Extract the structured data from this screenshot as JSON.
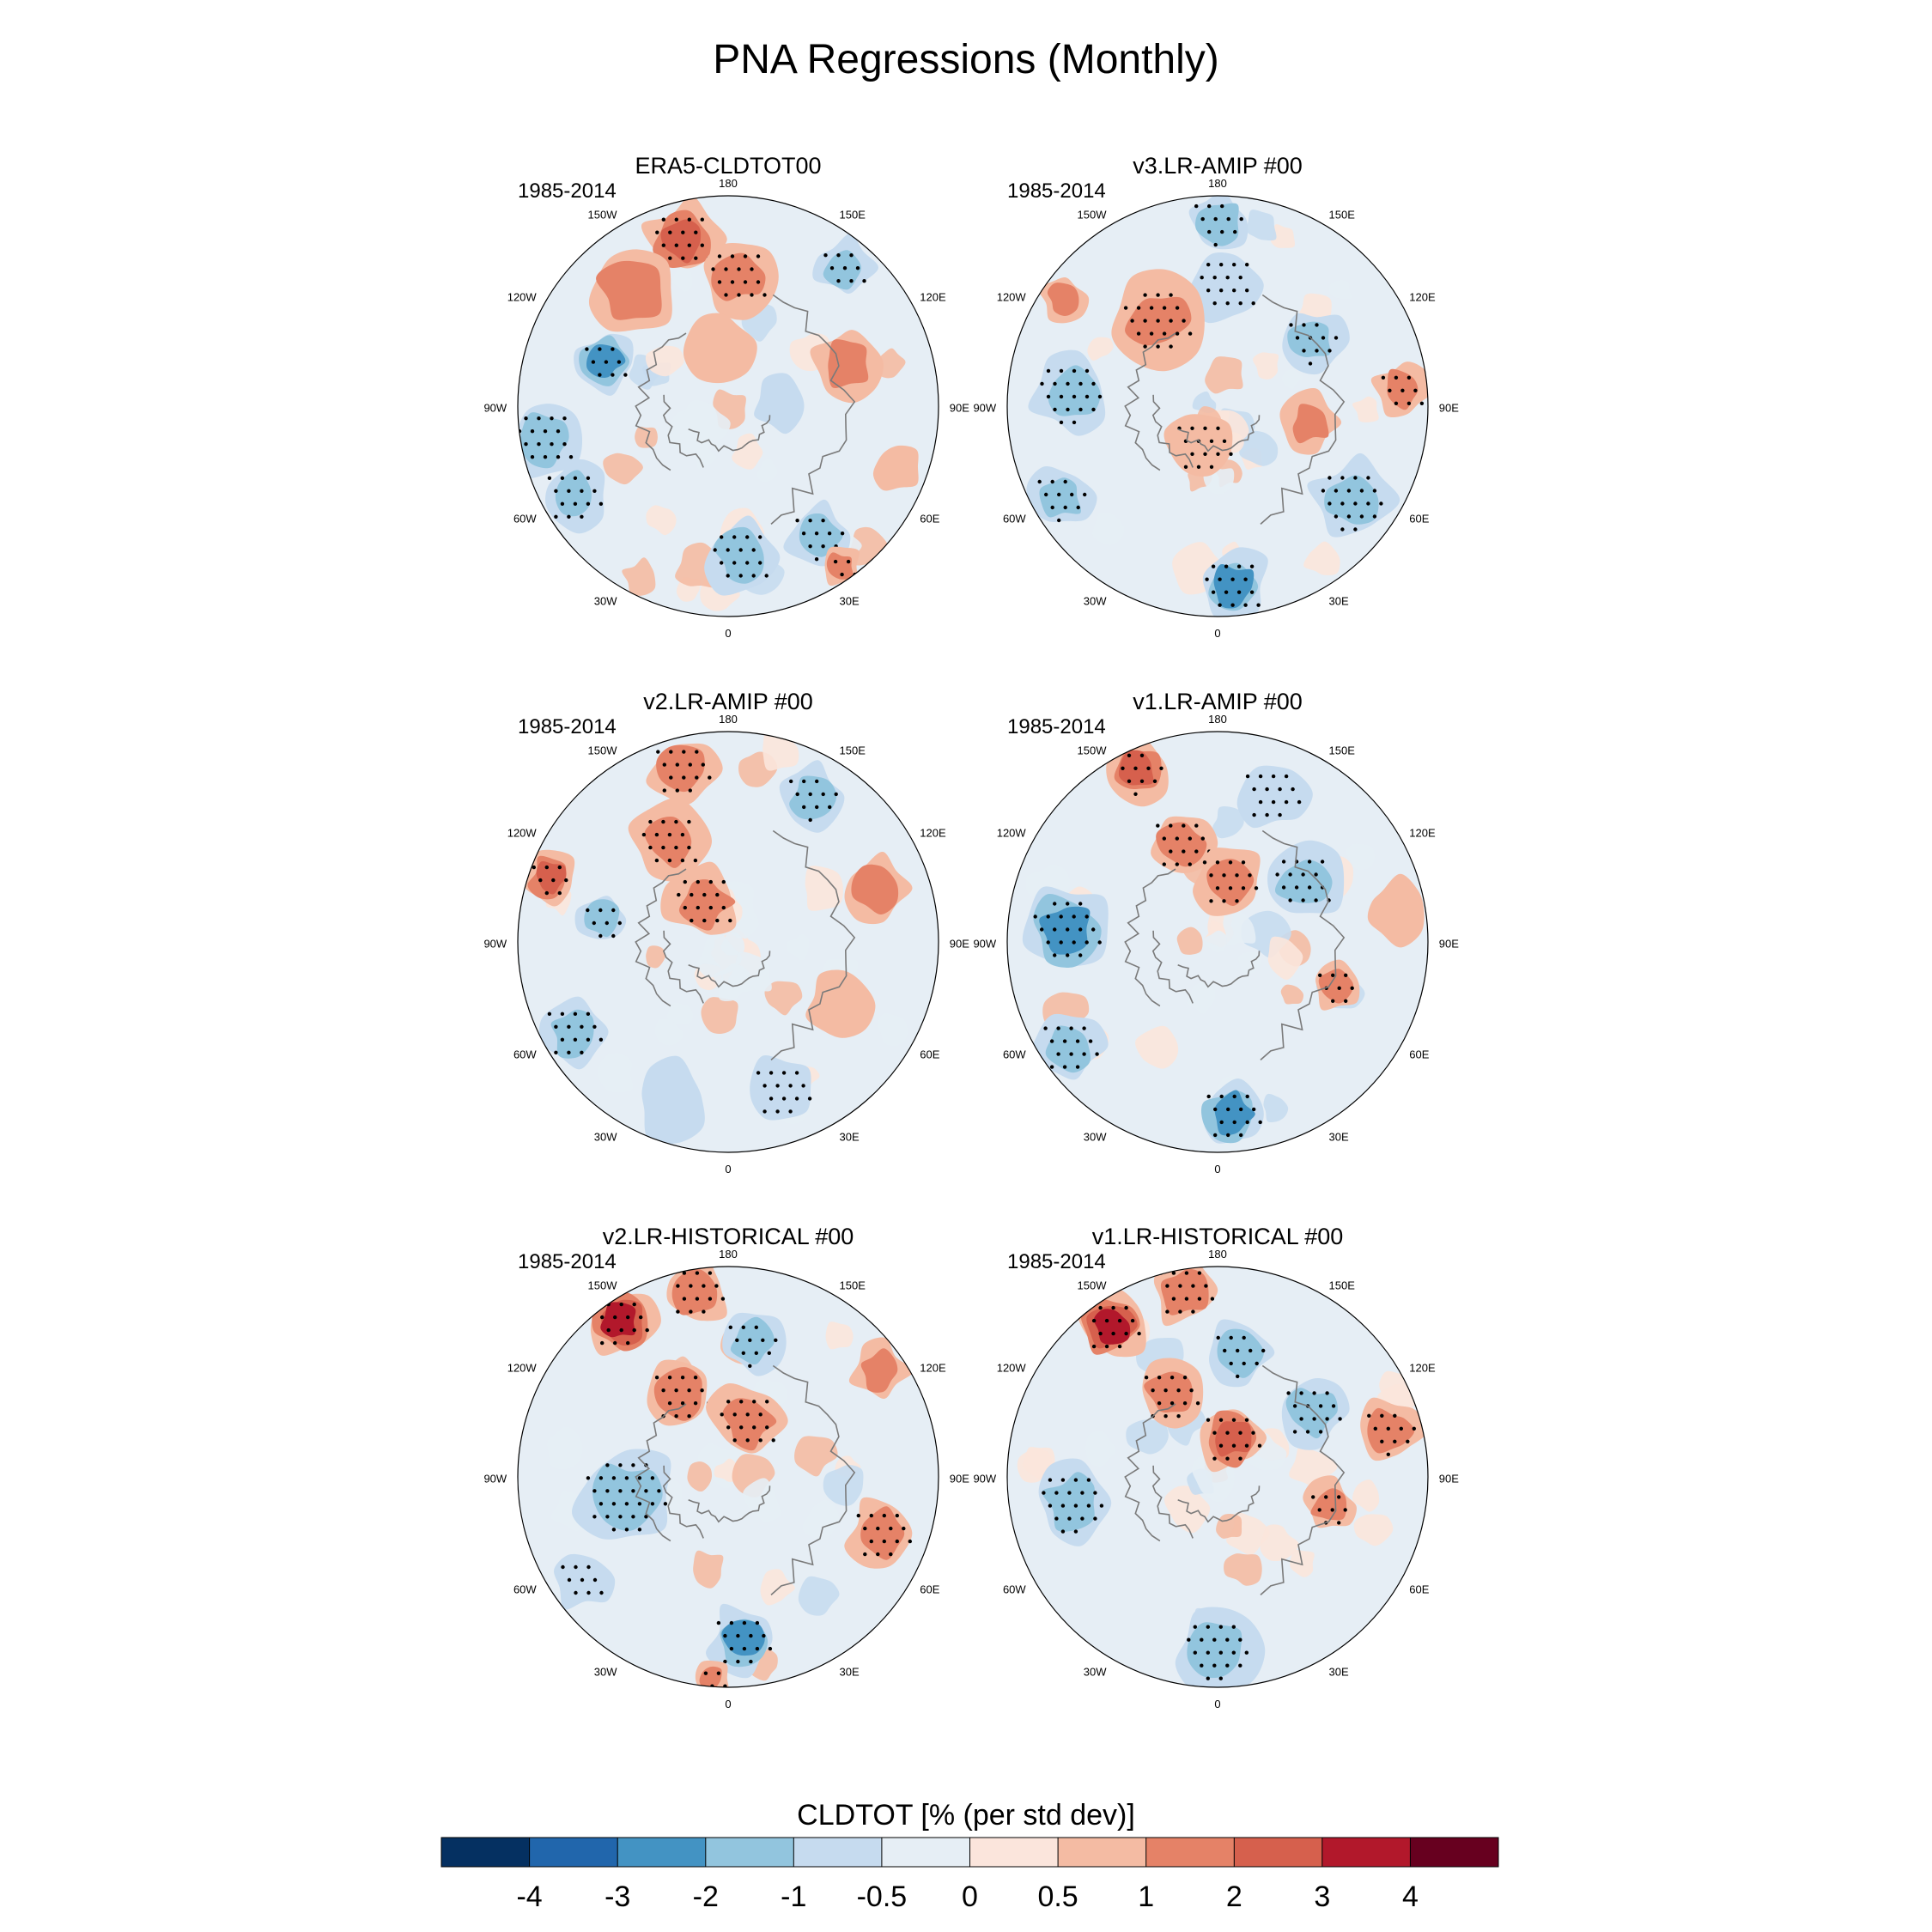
{
  "chart_data": {
    "type": "heatmap",
    "title": "PNA Regressions (Monthly)",
    "projection": "north-polar-stereographic",
    "period": "1985-2014",
    "lon_labels": [
      "180",
      "150E",
      "120E",
      "90E",
      "60E",
      "30E",
      "0",
      "30W",
      "60W",
      "90W",
      "120W",
      "150W"
    ],
    "panels": [
      {
        "id": "era5",
        "title": "ERA5-CLDTOT00",
        "period": "1985-2014",
        "features": [
          {
            "type": "blob",
            "sign": 1,
            "level": 3,
            "lon": -165,
            "r": 0.82,
            "size": 0.13,
            "stipple": true
          },
          {
            "type": "blob",
            "sign": 1,
            "level": 2,
            "lon": -140,
            "r": 0.72,
            "size": 0.16
          },
          {
            "type": "blob",
            "sign": 1,
            "level": 2,
            "lon": 175,
            "r": 0.62,
            "size": 0.13,
            "stipple": true
          },
          {
            "type": "blob",
            "sign": -1,
            "level": 2,
            "lon": 140,
            "r": 0.86,
            "size": 0.1,
            "stipple": true
          },
          {
            "type": "blob",
            "sign": 1,
            "level": 2,
            "lon": 110,
            "r": 0.6,
            "size": 0.12
          },
          {
            "type": "blob",
            "sign": -1,
            "level": 3,
            "lon": -110,
            "r": 0.62,
            "size": 0.1,
            "stipple": true
          },
          {
            "type": "blob",
            "sign": -1,
            "level": 2,
            "lon": -80,
            "r": 0.88,
            "size": 0.13,
            "stipple": true
          },
          {
            "type": "blob",
            "sign": -1,
            "level": 2,
            "lon": -60,
            "r": 0.85,
            "size": 0.12,
            "stipple": true
          },
          {
            "type": "blob",
            "sign": -1,
            "level": 2,
            "lon": 5,
            "r": 0.72,
            "size": 0.13,
            "stipple": true
          },
          {
            "type": "blob",
            "sign": -1,
            "level": 2,
            "lon": 35,
            "r": 0.75,
            "size": 0.11,
            "stipple": true
          },
          {
            "type": "blob",
            "sign": 1,
            "level": 2,
            "lon": 35,
            "r": 0.93,
            "size": 0.07,
            "stipple": true
          },
          {
            "type": "blob",
            "sign": 1,
            "level": 1,
            "lon": 70,
            "r": 0.85,
            "size": 0.08
          },
          {
            "type": "blob",
            "sign": 1,
            "level": 1,
            "lon": -170,
            "r": 0.3,
            "size": 0.12
          },
          {
            "type": "blob",
            "sign": -1,
            "level": 1,
            "lon": 90,
            "r": 0.25,
            "size": 0.1
          }
        ]
      },
      {
        "id": "v3amip",
        "title": "v3.LR-AMIP  #00",
        "period": "1985-2014",
        "features": [
          {
            "type": "blob",
            "sign": -1,
            "level": 2,
            "lon": 180,
            "r": 0.88,
            "size": 0.11,
            "stipple": true
          },
          {
            "type": "blob",
            "sign": -1,
            "level": 1,
            "lon": 175,
            "r": 0.58,
            "size": 0.13,
            "stipple": true
          },
          {
            "type": "blob",
            "sign": 1,
            "level": 2,
            "lon": -145,
            "r": 0.5,
            "size": 0.15,
            "stipple": true
          },
          {
            "type": "blob",
            "sign": 1,
            "level": 2,
            "lon": -125,
            "r": 0.9,
            "size": 0.08
          },
          {
            "type": "blob",
            "sign": -1,
            "level": 2,
            "lon": -95,
            "r": 0.7,
            "size": 0.14,
            "stipple": true
          },
          {
            "type": "blob",
            "sign": -1,
            "level": 2,
            "lon": -60,
            "r": 0.86,
            "size": 0.11,
            "stipple": true
          },
          {
            "type": "blob",
            "sign": -1,
            "level": 3,
            "lon": 5,
            "r": 0.86,
            "size": 0.13,
            "stipple": true
          },
          {
            "type": "blob",
            "sign": -1,
            "level": 2,
            "lon": 55,
            "r": 0.78,
            "size": 0.14,
            "stipple": true
          },
          {
            "type": "blob",
            "sign": 1,
            "level": 2,
            "lon": 95,
            "r": 0.88,
            "size": 0.1,
            "stipple": true
          },
          {
            "type": "blob",
            "sign": -1,
            "level": 2,
            "lon": 125,
            "r": 0.55,
            "size": 0.11,
            "stipple": true
          },
          {
            "type": "blob",
            "sign": 1,
            "level": 2,
            "lon": 80,
            "r": 0.45,
            "size": 0.1
          },
          {
            "type": "blob",
            "sign": 1,
            "level": 1,
            "lon": -20,
            "r": 0.2,
            "size": 0.12,
            "stipple": true
          }
        ]
      },
      {
        "id": "v2amip",
        "title": "v2.LR-AMIP  #00",
        "period": "1985-2014",
        "features": [
          {
            "type": "blob",
            "sign": 1,
            "level": 2,
            "lon": -165,
            "r": 0.85,
            "size": 0.12,
            "stipple": true
          },
          {
            "type": "blob",
            "sign": 1,
            "level": 2,
            "lon": -150,
            "r": 0.55,
            "size": 0.13,
            "stipple": true
          },
          {
            "type": "blob",
            "sign": 1,
            "level": 3,
            "lon": -110,
            "r": 0.9,
            "size": 0.09,
            "stipple": true
          },
          {
            "type": "blob",
            "sign": -1,
            "level": 2,
            "lon": -100,
            "r": 0.6,
            "size": 0.09,
            "stipple": true
          },
          {
            "type": "blob",
            "sign": 1,
            "level": 2,
            "lon": -150,
            "r": 0.22,
            "size": 0.13,
            "stipple": true
          },
          {
            "type": "blob",
            "sign": -1,
            "level": 2,
            "lon": 150,
            "r": 0.8,
            "size": 0.11,
            "stipple": true
          },
          {
            "type": "blob",
            "sign": 1,
            "level": 2,
            "lon": 110,
            "r": 0.75,
            "size": 0.12
          },
          {
            "type": "blob",
            "sign": -1,
            "level": 2,
            "lon": -60,
            "r": 0.85,
            "size": 0.12,
            "stipple": true
          },
          {
            "type": "blob",
            "sign": -1,
            "level": 1,
            "lon": -20,
            "r": 0.8,
            "size": 0.13
          },
          {
            "type": "blob",
            "sign": -1,
            "level": 1,
            "lon": 20,
            "r": 0.75,
            "size": 0.12,
            "stipple": true
          },
          {
            "type": "blob",
            "sign": 1,
            "level": 1,
            "lon": 60,
            "r": 0.6,
            "size": 0.12
          }
        ]
      },
      {
        "id": "v1amip",
        "title": "v1.LR-AMIP  #00",
        "period": "1985-2014",
        "features": [
          {
            "type": "blob",
            "sign": 1,
            "level": 3,
            "lon": -155,
            "r": 0.9,
            "size": 0.11,
            "stipple": true
          },
          {
            "type": "blob",
            "sign": 1,
            "level": 2,
            "lon": -160,
            "r": 0.5,
            "size": 0.12,
            "stipple": true
          },
          {
            "type": "blob",
            "sign": 1,
            "level": 2,
            "lon": 170,
            "r": 0.3,
            "size": 0.12,
            "stipple": true
          },
          {
            "type": "blob",
            "sign": -1,
            "level": 3,
            "lon": -95,
            "r": 0.72,
            "size": 0.15,
            "stipple": true
          },
          {
            "type": "blob",
            "sign": -1,
            "level": 2,
            "lon": -55,
            "r": 0.86,
            "size": 0.12,
            "stipple": true
          },
          {
            "type": "blob",
            "sign": -1,
            "level": 3,
            "lon": 5,
            "r": 0.82,
            "size": 0.12,
            "stipple": true
          },
          {
            "type": "blob",
            "sign": -1,
            "level": 2,
            "lon": 125,
            "r": 0.5,
            "size": 0.13,
            "stipple": true
          },
          {
            "type": "blob",
            "sign": 1,
            "level": 2,
            "lon": 70,
            "r": 0.6,
            "size": 0.09,
            "stipple": true
          },
          {
            "type": "blob",
            "sign": 1,
            "level": 1,
            "lon": 100,
            "r": 0.85,
            "size": 0.11
          },
          {
            "type": "blob",
            "sign": -1,
            "level": 1,
            "lon": 160,
            "r": 0.75,
            "size": 0.12,
            "stipple": true
          }
        ]
      },
      {
        "id": "v2hist",
        "title": "v2.LR-HISTORICAL  #00",
        "period": "1985-2014",
        "features": [
          {
            "type": "blob",
            "sign": 1,
            "level": 4,
            "lon": -145,
            "r": 0.9,
            "size": 0.12,
            "stipple": true
          },
          {
            "type": "blob",
            "sign": 1,
            "level": 2,
            "lon": -170,
            "r": 0.9,
            "size": 0.12,
            "stipple": true
          },
          {
            "type": "blob",
            "sign": -1,
            "level": 2,
            "lon": 170,
            "r": 0.65,
            "size": 0.11,
            "stipple": true
          },
          {
            "type": "blob",
            "sign": 1,
            "level": 2,
            "lon": -150,
            "r": 0.45,
            "size": 0.12,
            "stipple": true
          },
          {
            "type": "blob",
            "sign": 1,
            "level": 2,
            "lon": 160,
            "r": 0.28,
            "size": 0.13,
            "stipple": true
          },
          {
            "type": "blob",
            "sign": 1,
            "level": 2,
            "lon": 125,
            "r": 0.88,
            "size": 0.1
          },
          {
            "type": "blob",
            "sign": -1,
            "level": 2,
            "lon": -80,
            "r": 0.5,
            "size": 0.17,
            "stipple": true
          },
          {
            "type": "blob",
            "sign": -1,
            "level": 3,
            "lon": 5,
            "r": 0.78,
            "size": 0.12,
            "stipple": true
          },
          {
            "type": "blob",
            "sign": 1,
            "level": 2,
            "lon": -5,
            "r": 0.96,
            "size": 0.07,
            "stipple": true
          },
          {
            "type": "blob",
            "sign": 1,
            "level": 2,
            "lon": 70,
            "r": 0.78,
            "size": 0.12,
            "stipple": true
          },
          {
            "type": "blob",
            "sign": -1,
            "level": 1,
            "lon": -55,
            "r": 0.85,
            "size": 0.1,
            "stipple": true
          }
        ]
      },
      {
        "id": "v1hist",
        "title": "v1.LR-HISTORICAL  #00",
        "period": "1985-2014",
        "features": [
          {
            "type": "blob",
            "sign": 1,
            "level": 4,
            "lon": -145,
            "r": 0.88,
            "size": 0.12,
            "stipple": true
          },
          {
            "type": "blob",
            "sign": 1,
            "level": 2,
            "lon": -170,
            "r": 0.9,
            "size": 0.12,
            "stipple": true
          },
          {
            "type": "blob",
            "sign": -1,
            "level": 2,
            "lon": 170,
            "r": 0.6,
            "size": 0.11,
            "stipple": true
          },
          {
            "type": "blob",
            "sign": 1,
            "level": 2,
            "lon": -150,
            "r": 0.45,
            "size": 0.12,
            "stipple": true
          },
          {
            "type": "blob",
            "sign": 1,
            "level": 3,
            "lon": 160,
            "r": 0.2,
            "size": 0.12,
            "stipple": true
          },
          {
            "type": "blob",
            "sign": -1,
            "level": 2,
            "lon": 125,
            "r": 0.55,
            "size": 0.12,
            "stipple": true
          },
          {
            "type": "blob",
            "sign": 1,
            "level": 2,
            "lon": 105,
            "r": 0.85,
            "size": 0.11,
            "stipple": true
          },
          {
            "type": "blob",
            "sign": -1,
            "level": 2,
            "lon": -80,
            "r": 0.7,
            "size": 0.14,
            "stipple": true
          },
          {
            "type": "blob",
            "sign": -1,
            "level": 2,
            "lon": 0,
            "r": 0.82,
            "size": 0.14,
            "stipple": true
          },
          {
            "type": "blob",
            "sign": 1,
            "level": 2,
            "lon": 75,
            "r": 0.55,
            "size": 0.09,
            "stipple": true
          }
        ]
      }
    ],
    "colorbar": {
      "label": "CLDTOT [% (per std dev)]",
      "levels": [
        -4,
        -3,
        -2,
        -1,
        -0.5,
        0,
        0.5,
        1,
        2,
        3,
        4
      ],
      "tick_labels": [
        "-4",
        "-3",
        "-2",
        "-1",
        "-0.5",
        "0",
        "0.5",
        "1",
        "2",
        "3",
        "4"
      ],
      "colors": [
        "#053061",
        "#2166ac",
        "#4393c3",
        "#92c5de",
        "#c6dbef",
        "#e6eef5",
        "#fbe5dc",
        "#f4bba3",
        "#e58267",
        "#d6604d",
        "#b2182b",
        "#67001f"
      ]
    },
    "palette": {
      "negative": [
        "#e6eef5",
        "#c6dbef",
        "#92c5de",
        "#4393c3",
        "#2166ac"
      ],
      "positive": [
        "#fbe5dc",
        "#f4bba3",
        "#e58267",
        "#d6604d",
        "#b2182b"
      ],
      "background": "#e6eef5",
      "coastline": "#7a7a7a",
      "stipple": "#000000"
    }
  }
}
